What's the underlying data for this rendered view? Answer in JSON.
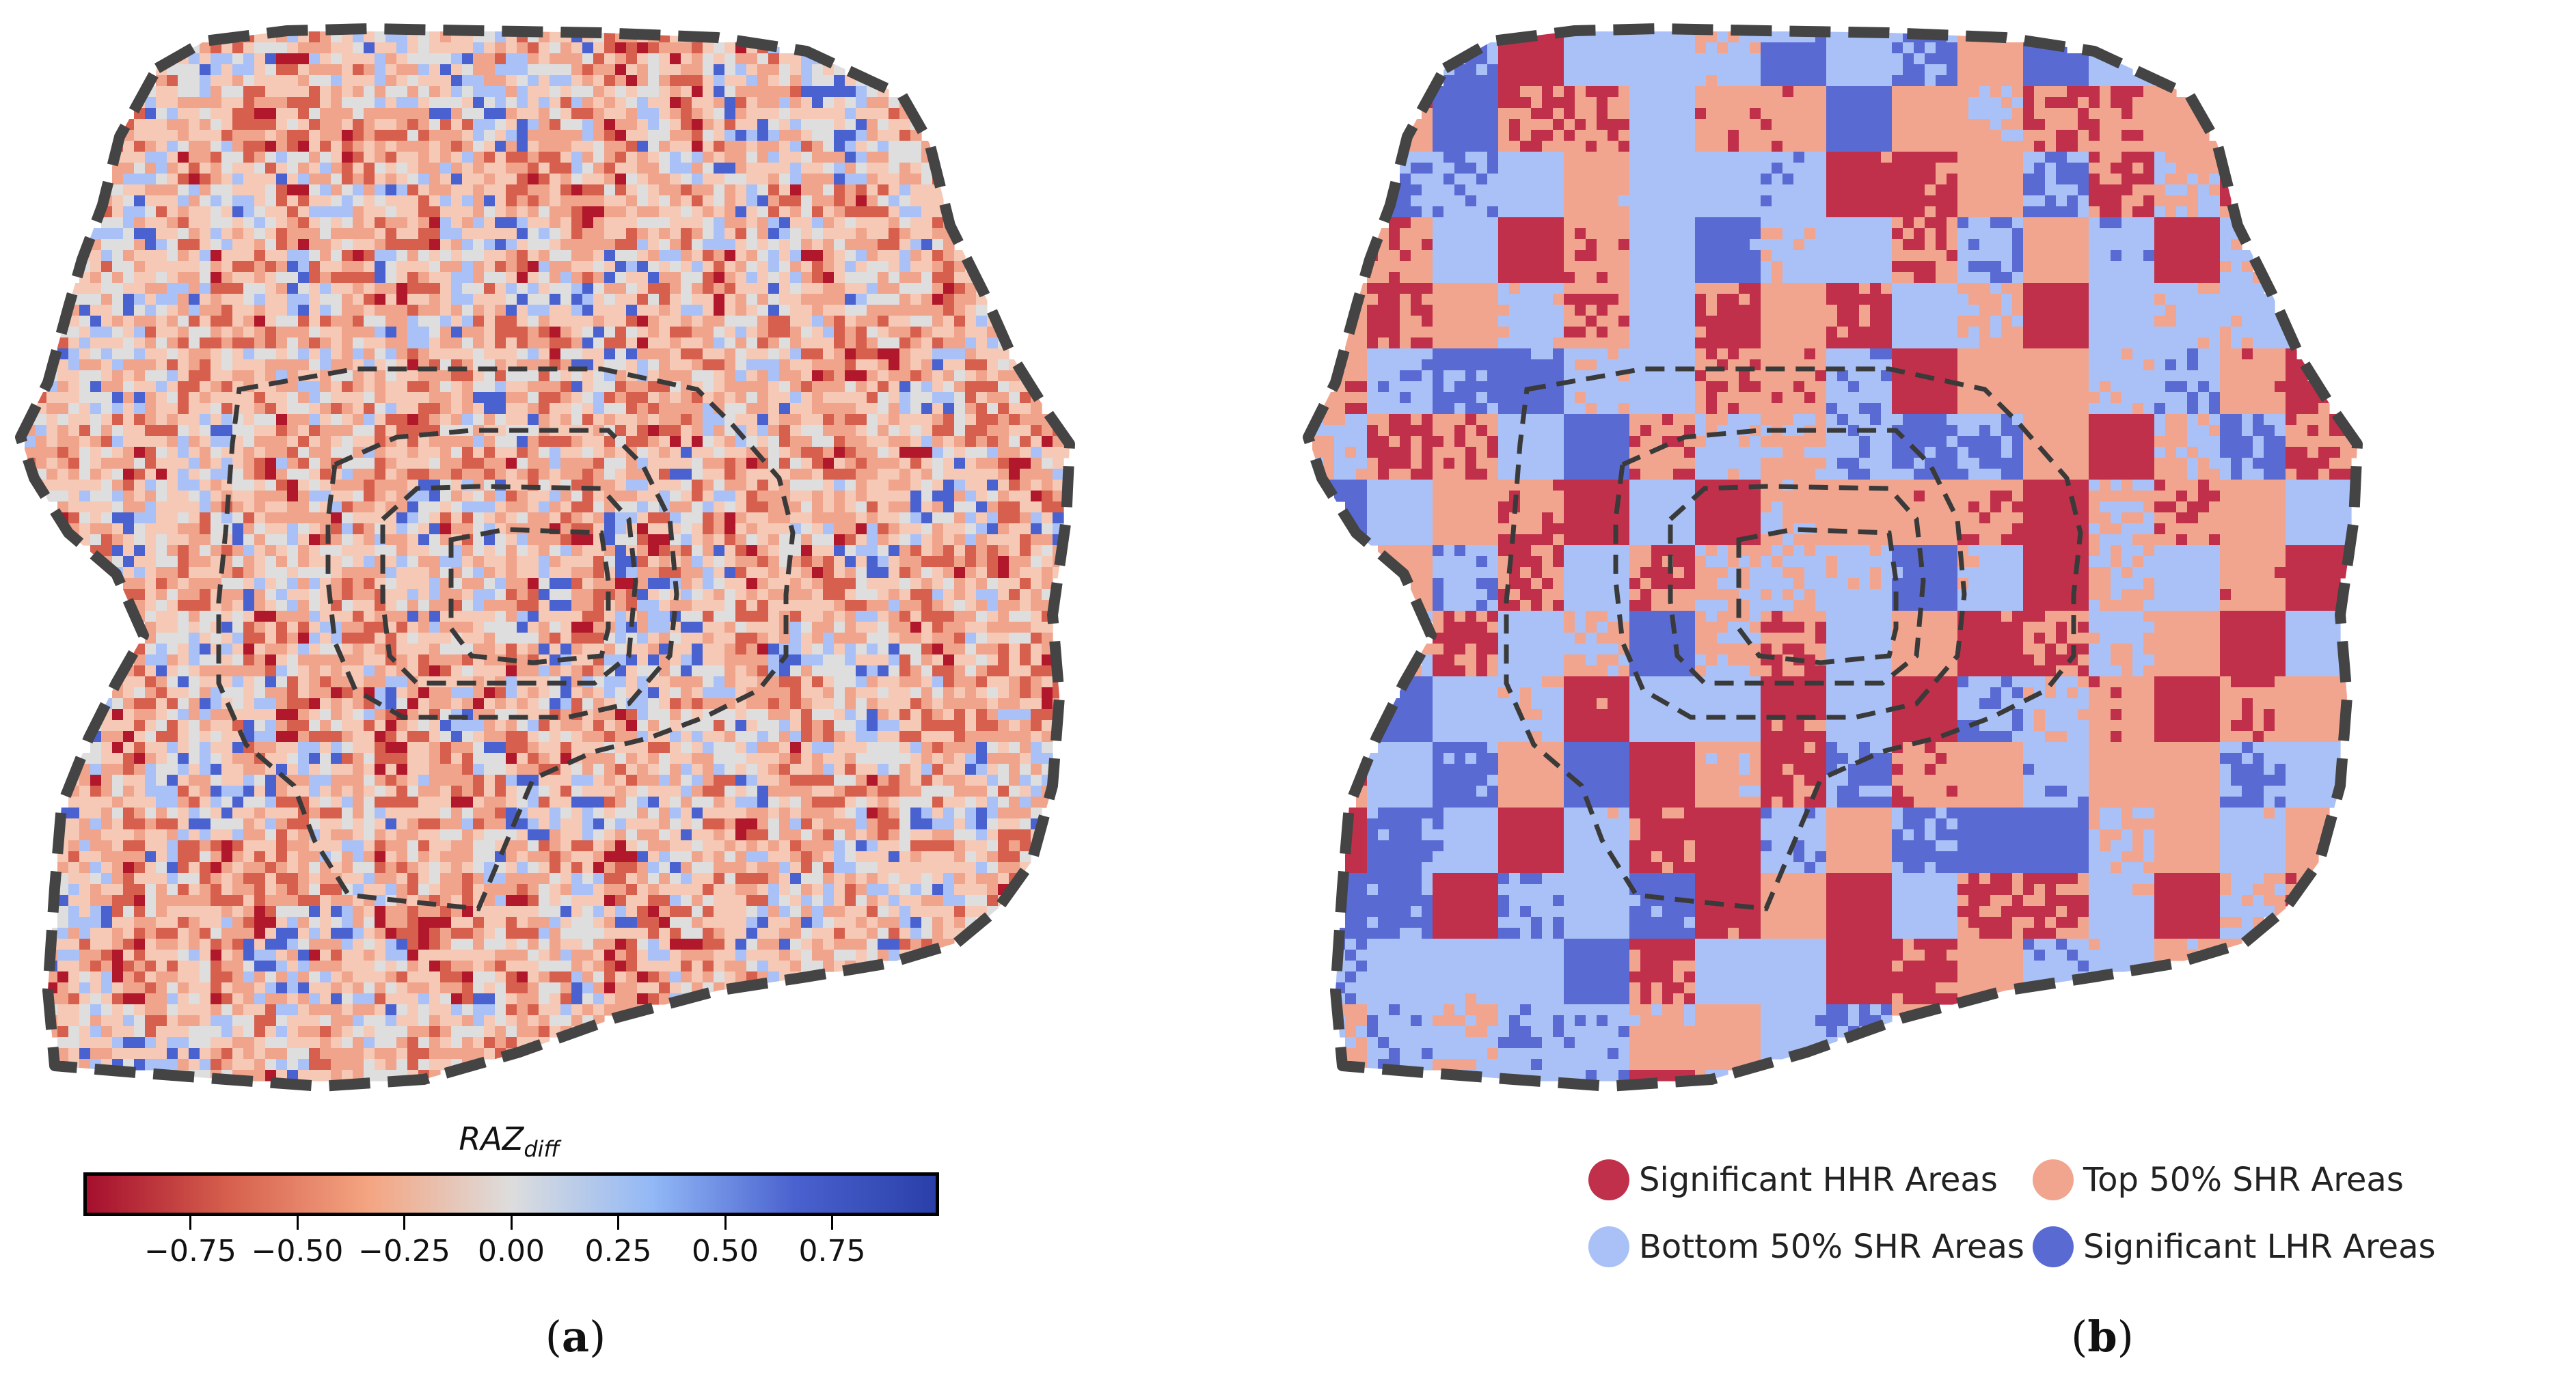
{
  "panel_a": {
    "colorbar": {
      "title_main": "RAZ",
      "title_sub": "diff",
      "ticks": [
        "−0.75",
        "−0.50",
        "−0.25",
        "0.00",
        "0.25",
        "0.50",
        "0.75"
      ],
      "tick_values": [
        -0.75,
        -0.5,
        -0.25,
        0.0,
        0.25,
        0.5,
        0.75
      ],
      "range": [
        -1.0,
        1.0
      ],
      "colormap": [
        "#a50f2e",
        "#d6604d",
        "#f4a582",
        "#dddddd",
        "#92b8f6",
        "#4a62cf",
        "#2a3fa8"
      ]
    },
    "label": "(a)",
    "label_letter": "a"
  },
  "panel_b": {
    "legend": [
      {
        "label": "Significant HHR Areas",
        "color": "#c0304a"
      },
      {
        "label": "Top 50% SHR Areas",
        "color": "#f2a58e"
      },
      {
        "label": "Bottom 50% SHR Areas",
        "color": "#a9c1f6"
      },
      {
        "label": "Significant LHR Areas",
        "color": "#5a6ad3"
      }
    ],
    "label": "(b)",
    "label_letter": "b"
  },
  "map_colors": {
    "boundary": "#444444",
    "ring_roads": "#3a3a3a"
  }
}
